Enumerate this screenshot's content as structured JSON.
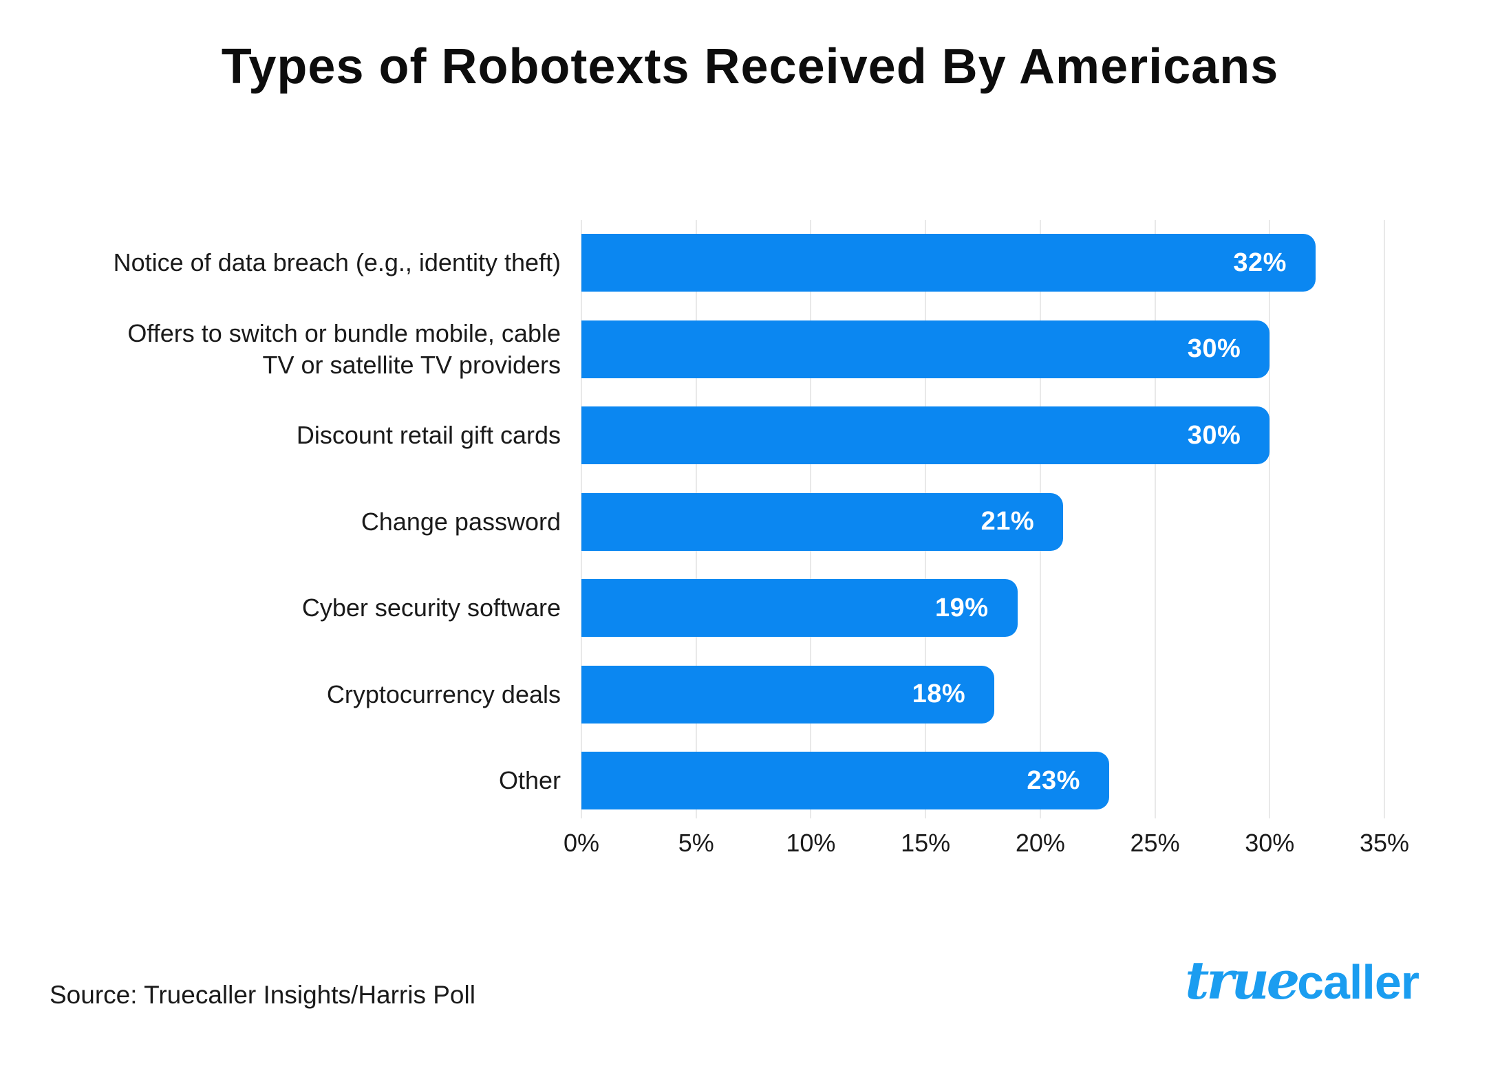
{
  "title": "Types of Robotexts Received By Americans",
  "chart_data": {
    "type": "bar",
    "orientation": "horizontal",
    "title": "Types of Robotexts Received By Americans",
    "categories": [
      "Notice of data breach (e.g., identity theft)",
      "Offers to switch or bundle mobile, cable\nTV or satellite TV providers",
      "Discount retail gift cards",
      "Change password",
      "Cyber security software",
      "Cryptocurrency deals",
      "Other"
    ],
    "values": [
      32,
      30,
      30,
      21,
      19,
      18,
      23
    ],
    "value_labels": [
      "32%",
      "30%",
      "30%",
      "21%",
      "19%",
      "18%",
      "23%"
    ],
    "xlim": [
      0,
      35
    ],
    "x_ticks": [
      0,
      5,
      10,
      15,
      20,
      25,
      30,
      35
    ],
    "x_tick_labels": [
      "0%",
      "5%",
      "10%",
      "15%",
      "20%",
      "25%",
      "30%",
      "35%"
    ],
    "grid": "vertical-light-gray",
    "gridline_color": "#e9e9e9",
    "bar_color": "#0b87f1",
    "value_label_color": "#ffffff",
    "legend": "none"
  },
  "source": {
    "text": "Source: Truecaller Insights/Harris Poll"
  },
  "logo": {
    "script_part": "true",
    "bold_part": "caller",
    "color": "#1b9df0"
  }
}
